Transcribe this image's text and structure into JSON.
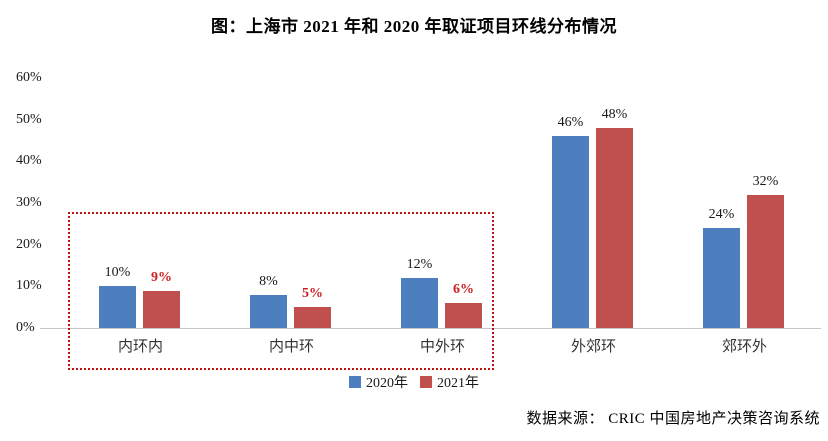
{
  "title": "图：上海市 2021 年和 2020 年取证项目环线分布情况",
  "source": "数据来源： CRIC 中国房地产决策咨询系统",
  "colors": {
    "series_2020": "#4d7ebd",
    "series_2021": "#c0504d",
    "emphasis_label": "#cc2222",
    "normal_label": "#1a1a1a",
    "highlight_box": "#bf1010",
    "axis_line": "#c6c6c6"
  },
  "chart_data": {
    "type": "bar",
    "title": "图：上海市 2021 年和 2020 年取证项目环线分布情况",
    "categories": [
      "内环内",
      "内中环",
      "中外环",
      "外郊环",
      "郊环外"
    ],
    "series": [
      {
        "name": "2020年",
        "color_key": "series_2020",
        "values": [
          10,
          8,
          12,
          46,
          24
        ],
        "labels": [
          "10%",
          "8%",
          "12%",
          "46%",
          "24%"
        ],
        "emphasis": [
          false,
          false,
          false,
          false,
          false
        ]
      },
      {
        "name": "2021年",
        "color_key": "series_2021",
        "values": [
          9,
          5,
          6,
          48,
          32
        ],
        "labels": [
          "9%",
          "5%",
          "6%",
          "48%",
          "32%"
        ],
        "emphasis": [
          true,
          true,
          true,
          false,
          false
        ]
      }
    ],
    "ylabel": "",
    "xlabel": "",
    "ylim": [
      0,
      60
    ],
    "ytick_labels": [
      "0%",
      "10%",
      "20%",
      "30%",
      "40%",
      "50%",
      "60%"
    ],
    "grid": false,
    "legend_position": "bottom-center",
    "annotation_box_encloses": [
      "内环内",
      "内中环",
      "中外环"
    ]
  }
}
